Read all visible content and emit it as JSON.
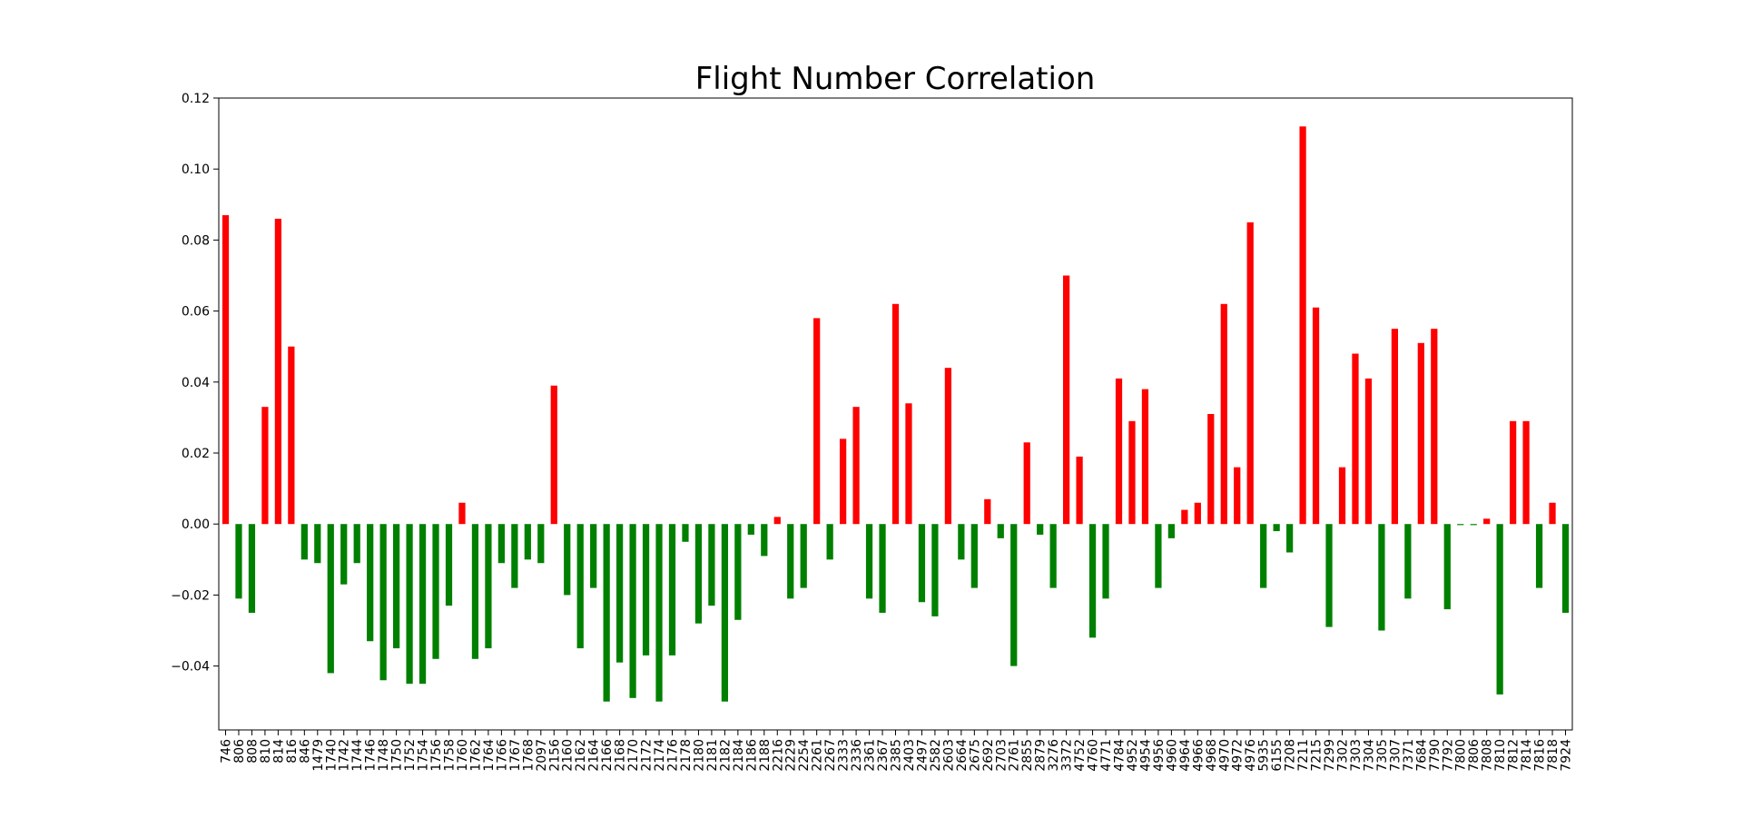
{
  "chart_data": {
    "type": "bar",
    "title": "Flight Number Correlation",
    "xlabel": "",
    "ylabel": "",
    "ylim": [
      -0.058,
      0.12
    ],
    "yticks": [
      -0.04,
      -0.02,
      0.0,
      0.02,
      0.04,
      0.06,
      0.08,
      0.1,
      0.12
    ],
    "ytick_labels": [
      "−0.04",
      "−0.02",
      "0.00",
      "0.02",
      "0.04",
      "0.06",
      "0.08",
      "0.10",
      "0.12"
    ],
    "grid": false,
    "legend": "none",
    "colors": {
      "positive": "#ff0000",
      "negative": "#008000"
    },
    "categories": [
      "746",
      "806",
      "808",
      "810",
      "814",
      "816",
      "846",
      "1479",
      "1740",
      "1742",
      "1744",
      "1746",
      "1748",
      "1750",
      "1752",
      "1754",
      "1756",
      "1758",
      "1760",
      "1762",
      "1764",
      "1766",
      "1767",
      "1768",
      "2097",
      "2156",
      "2160",
      "2162",
      "2164",
      "2166",
      "2168",
      "2170",
      "2172",
      "2174",
      "2176",
      "2178",
      "2180",
      "2181",
      "2182",
      "2184",
      "2186",
      "2188",
      "2216",
      "2229",
      "2254",
      "2261",
      "2267",
      "2333",
      "2336",
      "2361",
      "2367",
      "2385",
      "2403",
      "2497",
      "2582",
      "2603",
      "2664",
      "2675",
      "2692",
      "2703",
      "2761",
      "2855",
      "2879",
      "3276",
      "3372",
      "4752",
      "4760",
      "4771",
      "4784",
      "4952",
      "4954",
      "4956",
      "4960",
      "4964",
      "4966",
      "4968",
      "4970",
      "4972",
      "4976",
      "5935",
      "6155",
      "7208",
      "7211",
      "7215",
      "7299",
      "7302",
      "7303",
      "7304",
      "7305",
      "7307",
      "7371",
      "7684",
      "7790",
      "7792",
      "7800",
      "7806",
      "7808",
      "7810",
      "7812",
      "7814",
      "7816",
      "7818",
      "7924"
    ],
    "values": [
      0.087,
      -0.021,
      -0.025,
      0.033,
      0.086,
      0.05,
      -0.01,
      -0.011,
      -0.042,
      -0.017,
      -0.011,
      -0.033,
      -0.044,
      -0.035,
      -0.045,
      -0.045,
      -0.038,
      -0.023,
      0.006,
      -0.038,
      -0.035,
      -0.011,
      -0.018,
      -0.01,
      -0.011,
      0.039,
      -0.02,
      -0.035,
      -0.018,
      -0.05,
      -0.039,
      -0.049,
      -0.037,
      -0.05,
      -0.037,
      -0.005,
      -0.028,
      -0.023,
      -0.05,
      -0.027,
      -0.003,
      -0.009,
      0.002,
      -0.021,
      -0.018,
      0.058,
      -0.01,
      0.024,
      0.033,
      -0.021,
      -0.025,
      0.062,
      0.034,
      -0.022,
      -0.026,
      0.044,
      -0.01,
      -0.018,
      0.007,
      -0.004,
      -0.04,
      0.023,
      -0.003,
      -0.018,
      0.07,
      0.019,
      -0.032,
      -0.021,
      0.041,
      0.029,
      0.038,
      -0.018,
      -0.004,
      0.004,
      0.006,
      0.031,
      0.062,
      0.016,
      0.085,
      -0.018,
      -0.002,
      -0.008,
      0.112,
      0.061,
      -0.029,
      0.016,
      0.048,
      0.041,
      -0.03,
      0.055,
      -0.021,
      0.051,
      0.055,
      -0.024,
      -0.0003,
      -0.0003,
      0.0015,
      -0.048,
      0.029,
      0.029,
      -0.018,
      0.006,
      -0.025
    ]
  }
}
